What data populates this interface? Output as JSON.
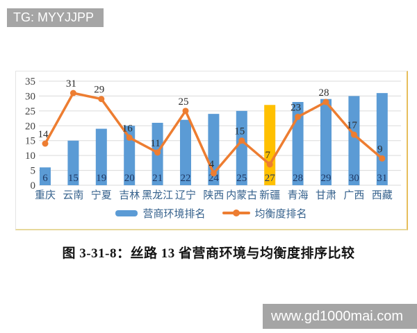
{
  "watermarks": {
    "top_left": "TG: MYYJJPP",
    "bottom_right": "www.gd1000mai.com"
  },
  "caption": "图 3-31-8：丝路 13 省营商环境与均衡度排序比较",
  "chart_data": {
    "type": "bar",
    "subtype": "bar+line combo",
    "categories": [
      "重庆",
      "云南",
      "宁夏",
      "吉林",
      "黑龙江",
      "辽宁",
      "陕西",
      "内蒙古",
      "新疆",
      "青海",
      "甘肃",
      "广西",
      "西藏"
    ],
    "series": [
      {
        "name": "营商环境排名",
        "type": "bar",
        "values": [
          6,
          15,
          19,
          20,
          21,
          22,
          24,
          25,
          27,
          28,
          29,
          30,
          31
        ],
        "color": "#5b9bd5",
        "highlight_index": 8,
        "highlight_color": "#ffc000"
      },
      {
        "name": "均衡度排名",
        "type": "line",
        "values": [
          14,
          31,
          29,
          16,
          11,
          25,
          4,
          15,
          7,
          23,
          28,
          17,
          9
        ],
        "color": "#ed7d31"
      }
    ],
    "title": "",
    "xlabel": "",
    "ylabel": "",
    "ylim": [
      0,
      35
    ],
    "yticks": [
      0,
      5,
      10,
      15,
      20,
      25,
      30,
      35
    ],
    "grid": true,
    "grid_color": "#dadada",
    "legend_position": "bottom",
    "data_labels": true
  }
}
